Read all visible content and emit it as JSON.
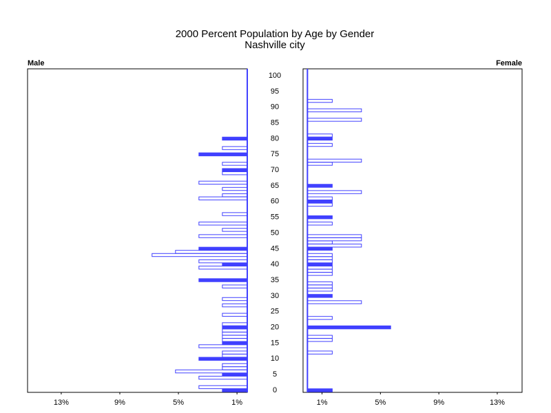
{
  "chart_data": {
    "type": "pyramid",
    "title": "2000 Percent Population by Age by Gender",
    "subtitle": "Nashville city",
    "categories": [
      0,
      null,
      null,
      null,
      null,
      5,
      null,
      null,
      null,
      null,
      10,
      null,
      null,
      null,
      null,
      15,
      null,
      null,
      null,
      null,
      20,
      null,
      null,
      null,
      null,
      25,
      null,
      null,
      null,
      null,
      30,
      null,
      null,
      null,
      null,
      35,
      null,
      null,
      null,
      null,
      40,
      null,
      null,
      null,
      null,
      45,
      null,
      null,
      null,
      null,
      50,
      null,
      null,
      null,
      null,
      55,
      null,
      null,
      null,
      null,
      60,
      null,
      null,
      null,
      null,
      65,
      null,
      null,
      null,
      null,
      70,
      null,
      null,
      null,
      null,
      75,
      null,
      null,
      null,
      null,
      80,
      null,
      null,
      null,
      null,
      85,
      null,
      null,
      null,
      null,
      90,
      null,
      null,
      null,
      null,
      95,
      null,
      null,
      null,
      null,
      100
    ],
    "solid_every": 5,
    "series": [
      {
        "name": "Male",
        "color": "#4040ff",
        "xlim": [
          15.3,
          0.3
        ],
        "xticks": [
          {
            "value": 13,
            "label": "13%"
          },
          {
            "value": 9,
            "label": "9%"
          },
          {
            "value": 5,
            "label": "5%"
          },
          {
            "value": 1,
            "label": "1%"
          }
        ],
        "values": [
          2,
          3.6,
          null,
          null,
          3.6,
          2,
          5.2,
          2,
          2,
          null,
          3.6,
          2,
          2,
          null,
          3.6,
          2,
          2,
          2,
          2,
          2,
          2,
          2,
          null,
          null,
          2,
          null,
          null,
          2,
          null,
          2,
          null,
          null,
          null,
          2,
          null,
          3.6,
          null,
          null,
          null,
          3.6,
          2,
          3.6,
          null,
          6.8,
          5.2,
          3.6,
          null,
          null,
          null,
          3.6,
          null,
          2,
          null,
          3.6,
          null,
          null,
          2,
          null,
          null,
          null,
          null,
          3.6,
          2,
          null,
          2,
          null,
          3.6,
          null,
          null,
          2,
          2,
          null,
          2,
          null,
          null,
          3.6,
          null,
          2,
          null,
          null,
          2,
          null,
          null,
          null,
          null,
          null,
          null,
          null,
          null,
          null,
          null,
          null,
          null,
          null,
          null,
          null,
          null,
          null,
          null,
          null,
          null
        ]
      },
      {
        "name": "Female",
        "color": "#4040ff",
        "xlim": [
          -0.3,
          14.7
        ],
        "xticks": [
          {
            "value": 1,
            "label": "1%"
          },
          {
            "value": 5,
            "label": "5%"
          },
          {
            "value": 9,
            "label": "9%"
          },
          {
            "value": 13,
            "label": "13%"
          }
        ],
        "values": [
          1.7,
          null,
          null,
          null,
          null,
          null,
          null,
          null,
          null,
          null,
          null,
          null,
          1.7,
          null,
          null,
          null,
          1.7,
          1.7,
          null,
          null,
          5.7,
          null,
          null,
          1.7,
          null,
          null,
          null,
          null,
          3.7,
          null,
          1.7,
          null,
          1.7,
          1.7,
          1.7,
          null,
          null,
          1.7,
          1.7,
          1.7,
          1.7,
          1.7,
          1.7,
          1.7,
          null,
          1.7,
          3.7,
          1.7,
          3.7,
          3.7,
          null,
          null,
          null,
          1.7,
          null,
          1.7,
          null,
          null,
          null,
          1.7,
          1.7,
          1.7,
          null,
          3.7,
          null,
          1.7,
          null,
          null,
          null,
          null,
          null,
          null,
          1.7,
          3.7,
          null,
          null,
          null,
          null,
          1.7,
          null,
          1.7,
          1.7,
          null,
          null,
          null,
          null,
          3.7,
          null,
          null,
          3.7,
          null,
          null,
          1.7,
          null,
          null,
          null,
          null,
          null,
          null,
          null,
          null
        ]
      }
    ]
  }
}
